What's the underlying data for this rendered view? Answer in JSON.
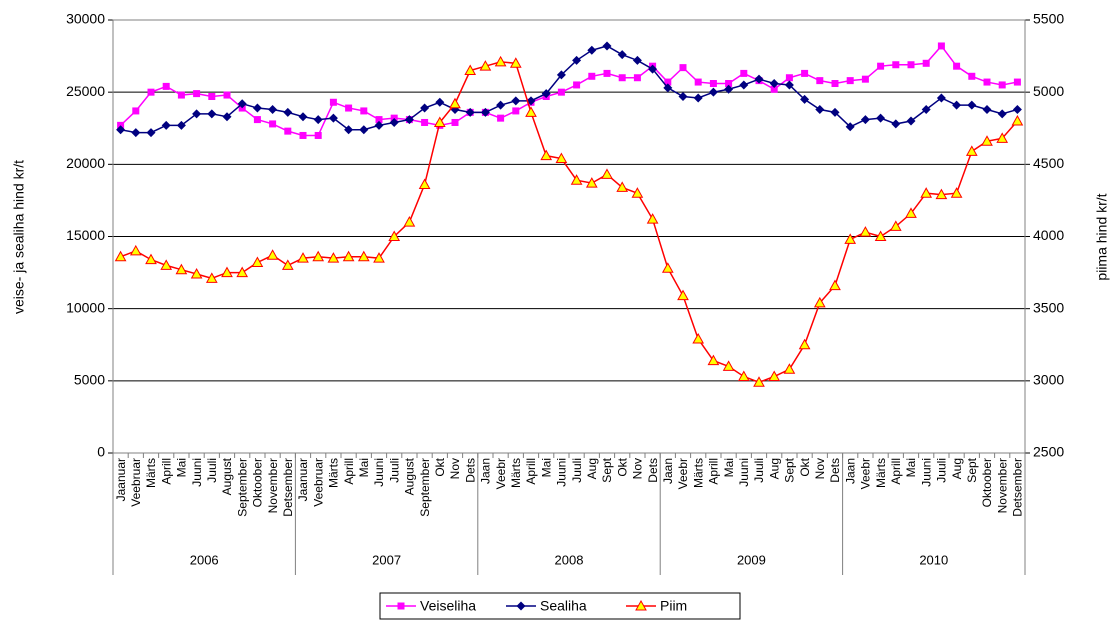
{
  "chart_data": {
    "type": "line",
    "y_axis_label": "veise- ja sealiha hind kr/t",
    "y2_axis_label": "piima hind kr/t",
    "category_groups": [
      {
        "label": "2006",
        "categories": [
          "Jaanuar",
          "Veebruar",
          "Märts",
          "Aprill",
          "Mai",
          "Juuni",
          "Juuli",
          "August",
          "September",
          "Oktoober",
          "November",
          "Detsember"
        ]
      },
      {
        "label": "2007",
        "categories": [
          "Jaanuar",
          "Veebruar",
          "Märts",
          "Aprill",
          "Mai",
          "Juuni",
          "Juuli",
          "August",
          "September",
          "Okt",
          "Nov",
          "Dets"
        ]
      },
      {
        "label": "2008",
        "categories": [
          "Jaan",
          "Veebr",
          "Märts",
          "Aprill",
          "Mai",
          "Juuni",
          "Juuli",
          "Aug",
          "Sept",
          "Okt",
          "Nov",
          "Dets"
        ]
      },
      {
        "label": "2009",
        "categories": [
          "Jaan",
          "Veebr",
          "Märts",
          "Aprill",
          "Mai",
          "Juuni",
          "Juuli",
          "Aug",
          "Sept",
          "Okt",
          "Nov",
          "Dets"
        ]
      },
      {
        "label": "2010",
        "categories": [
          "Jaan",
          "Veebr",
          "Märts",
          "Aprill",
          "Mai",
          "Juuni",
          "Juuli",
          "Aug",
          "Sept",
          "Oktoober",
          "November",
          "Detsember"
        ]
      }
    ],
    "series": [
      {
        "name": "Veiseliha",
        "color": "#ff00ff",
        "marker": "square",
        "values": [
          22700,
          23700,
          25000,
          25400,
          24800,
          24900,
          24700,
          24800,
          23900,
          23100,
          22800,
          22300,
          22000,
          22000,
          24300,
          23900,
          23700,
          23100,
          23200,
          23100,
          22900,
          22700,
          22900,
          23600,
          23600,
          23200,
          23700,
          24300,
          24700,
          25000,
          25500,
          26100,
          26300,
          26000,
          26000,
          26800,
          25700,
          26700,
          25700,
          25600,
          25600,
          26300,
          25800,
          25200,
          26000,
          26300,
          25800,
          25600,
          25800,
          25900,
          26800,
          26900,
          26900,
          27000,
          28200,
          26800,
          26100,
          25700,
          25500,
          25700
        ]
      },
      {
        "name": "Sealiha",
        "color": "#000080",
        "marker": "diamond",
        "values": [
          22400,
          22200,
          22200,
          22700,
          22700,
          23500,
          23500,
          23300,
          24200,
          23900,
          23800,
          23600,
          23300,
          23100,
          23200,
          22400,
          22400,
          22700,
          22900,
          23100,
          23900,
          24300,
          23800,
          23600,
          23600,
          24100,
          24400,
          24400,
          24900,
          26200,
          27200,
          27900,
          28200,
          27600,
          27200,
          26600,
          25300,
          24700,
          24600,
          25000,
          25200,
          25500,
          25900,
          25600,
          25500,
          24500,
          23800,
          23600,
          22600,
          23100,
          23200,
          22800,
          23000,
          23800,
          24600,
          24100,
          24100,
          23800,
          23500,
          23800
        ]
      },
      {
        "name": "Piim",
        "color": "#ff0000",
        "marker": "triangle",
        "marker_fill": "#ffff00",
        "axis": "y2",
        "values": [
          3860,
          3900,
          3840,
          3800,
          3770,
          3740,
          3710,
          3750,
          3750,
          3820,
          3870,
          3800,
          3850,
          3860,
          3850,
          3860,
          3860,
          3850,
          4000,
          4100,
          4360,
          4790,
          4920,
          5150,
          5180,
          5210,
          5200,
          4860,
          4560,
          4540,
          4390,
          4370,
          4430,
          4340,
          4300,
          4120,
          3780,
          3590,
          3290,
          3140,
          3100,
          3030,
          2990,
          3030,
          3080,
          3250,
          3540,
          3660,
          3980,
          4030,
          4000,
          4070,
          4160,
          4300,
          4290,
          4300,
          4590,
          4660,
          4680,
          4800
        ]
      }
    ],
    "ylim": [
      0,
      30000
    ],
    "yticks": [
      0,
      5000,
      10000,
      15000,
      20000,
      25000,
      30000
    ],
    "y2lim": [
      2500,
      5500
    ],
    "y2ticks": [
      2500,
      3000,
      3500,
      4000,
      4500,
      5000,
      5500
    ],
    "grid": true,
    "legend": "bottom"
  }
}
